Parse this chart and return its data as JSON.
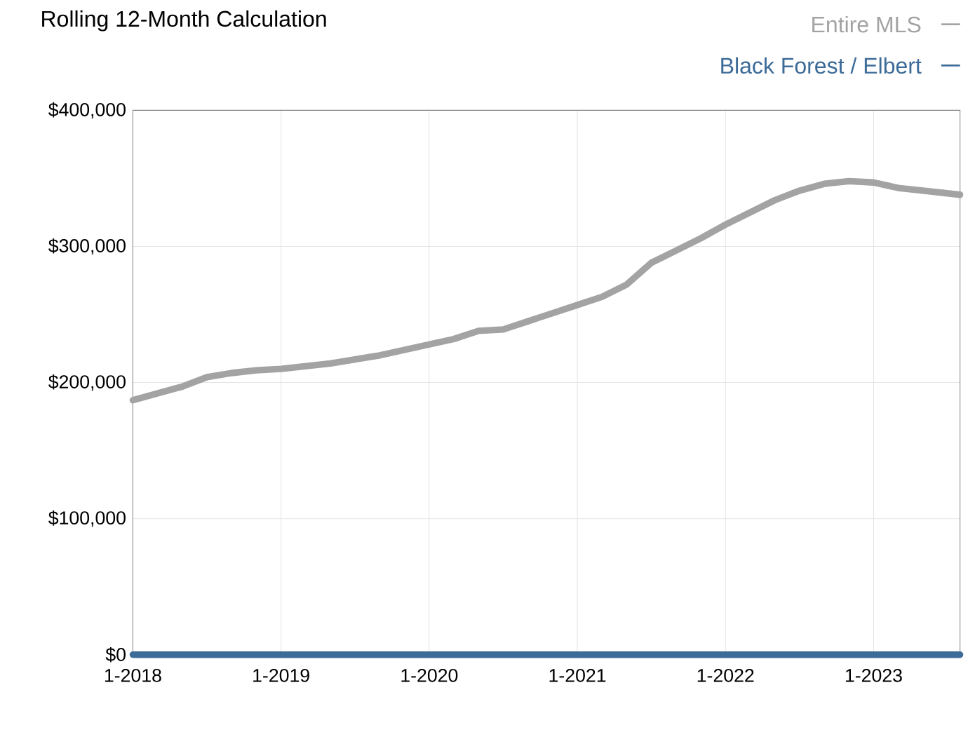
{
  "chart_data": {
    "type": "line",
    "title": "Rolling 12-Month Calculation",
    "x": [
      "2018-01",
      "2018-03",
      "2018-05",
      "2018-07",
      "2018-09",
      "2018-11",
      "2019-01",
      "2019-03",
      "2019-05",
      "2019-07",
      "2019-09",
      "2019-11",
      "2020-01",
      "2020-03",
      "2020-05",
      "2020-07",
      "2020-09",
      "2020-11",
      "2021-01",
      "2021-03",
      "2021-05",
      "2021-07",
      "2021-09",
      "2021-11",
      "2022-01",
      "2022-03",
      "2022-05",
      "2022-07",
      "2022-09",
      "2022-11",
      "2023-01",
      "2023-03",
      "2023-05",
      "2023-08"
    ],
    "series": [
      {
        "name": "Entire MLS",
        "color": "#a3a3a3",
        "values": [
          187000,
          192000,
          197000,
          204000,
          207000,
          209000,
          210000,
          212000,
          214000,
          217000,
          220000,
          224000,
          228000,
          232000,
          238000,
          239000,
          245000,
          251000,
          257000,
          263000,
          272000,
          288000,
          297000,
          306000,
          316000,
          325000,
          334000,
          341000,
          346000,
          348000,
          347000,
          343000,
          341000,
          338000
        ]
      },
      {
        "name": "Black Forest / Elbert",
        "color": "#3d6b98",
        "values": [
          0,
          0,
          0,
          0,
          0,
          0,
          0,
          0,
          0,
          0,
          0,
          0,
          0,
          0,
          0,
          0,
          0,
          0,
          0,
          0,
          0,
          0,
          0,
          0,
          0,
          0,
          0,
          0,
          0,
          0,
          0,
          0,
          0,
          0
        ]
      }
    ],
    "xlim": [
      "2018-01",
      "2023-08"
    ],
    "xticks": [
      {
        "value": "2018-01",
        "label": "1-2018"
      },
      {
        "value": "2019-01",
        "label": "1-2019"
      },
      {
        "value": "2020-01",
        "label": "1-2020"
      },
      {
        "value": "2021-01",
        "label": "1-2021"
      },
      {
        "value": "2022-01",
        "label": "1-2022"
      },
      {
        "value": "2023-01",
        "label": "1-2023"
      }
    ],
    "ylim": [
      0,
      400000
    ],
    "yticks": [
      {
        "value": 0,
        "label": "$0"
      },
      {
        "value": 100000,
        "label": "$100,000"
      },
      {
        "value": 200000,
        "label": "$200,000"
      },
      {
        "value": 300000,
        "label": "$300,000"
      },
      {
        "value": 400000,
        "label": "$400,000"
      }
    ],
    "grid": true,
    "legend": "top right",
    "marker": "none",
    "line_style": "solid"
  }
}
